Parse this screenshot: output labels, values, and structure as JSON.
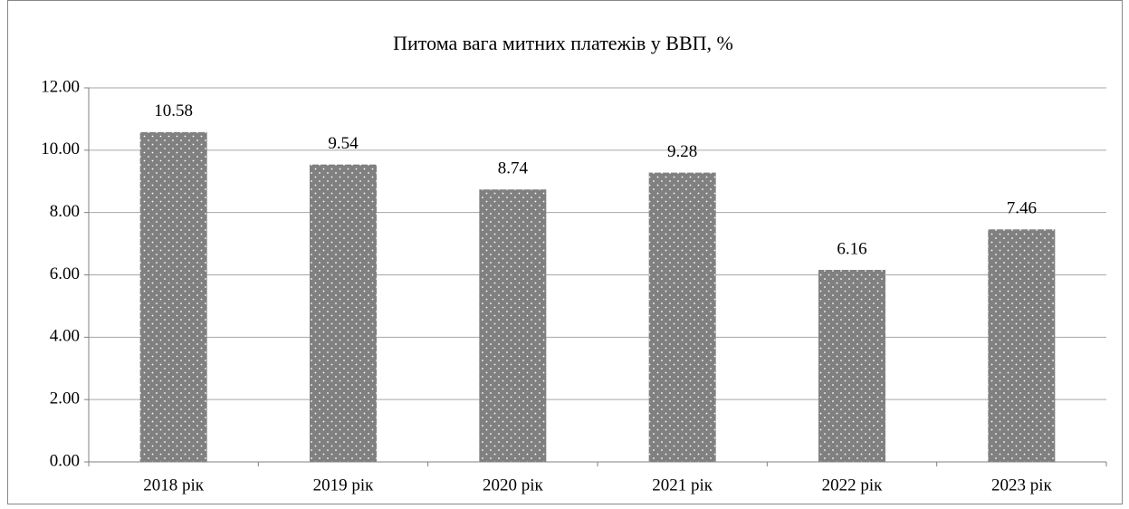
{
  "chart_data": {
    "type": "bar",
    "title": "Питома вага митних платежів у ВВП, %",
    "categories": [
      "2018 рік",
      "2019 рік",
      "2020 рік",
      "2021 рік",
      "2022 рік",
      "2023 рік"
    ],
    "values": [
      10.58,
      9.54,
      8.74,
      9.28,
      6.16,
      7.46
    ],
    "color": "#808080",
    "ylim": [
      0,
      12
    ],
    "yticks": [
      {
        "value": 0,
        "label": "0.00"
      },
      {
        "value": 2,
        "label": "2.00"
      },
      {
        "value": 4,
        "label": "4.00"
      },
      {
        "value": 6,
        "label": "6.00"
      },
      {
        "value": 8,
        "label": "8.00"
      },
      {
        "value": 10,
        "label": "10.00"
      },
      {
        "value": 12,
        "label": "12.00"
      }
    ],
    "grid": true
  }
}
